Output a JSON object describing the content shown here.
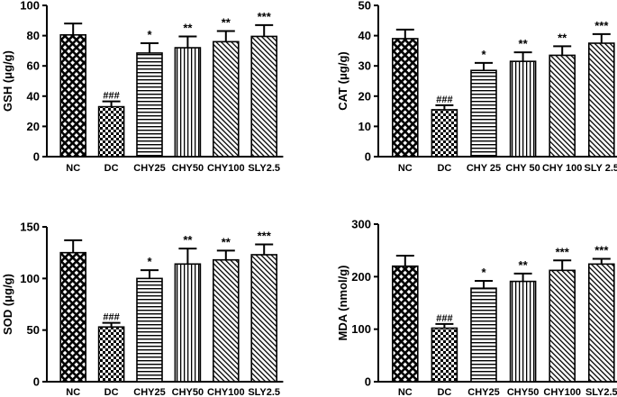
{
  "chart_data": [
    {
      "type": "bar",
      "ylabel": "GSH (μg/g)",
      "ylim": [
        0,
        100
      ],
      "yticks": [
        0,
        20,
        40,
        60,
        80,
        100
      ],
      "categories": [
        "NC",
        "DC",
        "CHY25",
        "CHY50",
        "CHY100",
        "SLY2.5"
      ],
      "values": [
        80.5,
        33,
        68.5,
        72,
        76,
        79.5
      ],
      "errors": [
        7.5,
        3.5,
        6.5,
        7.5,
        7,
        7.5
      ],
      "annotations": [
        "",
        "###",
        "*",
        "**",
        "**",
        "***"
      ],
      "patterns": [
        "crosshatch",
        "checker",
        "horizontal",
        "vertical",
        "diagonal",
        "diagonal"
      ]
    },
    {
      "type": "bar",
      "ylabel": "CAT (μg/g)",
      "ylim": [
        0,
        50
      ],
      "yticks": [
        0,
        10,
        20,
        30,
        40,
        50
      ],
      "categories": [
        "NC",
        "DC",
        "CHY 25",
        "CHY 50",
        "CHY 100",
        "SLY 2.5"
      ],
      "values": [
        39,
        15.5,
        28.5,
        31.5,
        33.5,
        37.5
      ],
      "errors": [
        3,
        1.5,
        2.5,
        3,
        3,
        3
      ],
      "annotations": [
        "",
        "###",
        "*",
        "**",
        "**",
        "***"
      ],
      "patterns": [
        "crosshatch",
        "checker",
        "horizontal",
        "vertical",
        "diagonal",
        "diagonal"
      ]
    },
    {
      "type": "bar",
      "ylabel": "SOD (μg/g)",
      "ylim": [
        0,
        150
      ],
      "yticks": [
        0,
        50,
        100,
        150
      ],
      "categories": [
        "NC",
        "DC",
        "CHY25",
        "CHY50",
        "CHY100",
        "SLY2.5"
      ],
      "values": [
        125,
        53,
        100,
        114,
        118,
        123
      ],
      "errors": [
        12,
        4,
        8,
        15,
        9,
        10
      ],
      "annotations": [
        "",
        "###",
        "*",
        "**",
        "**",
        "***"
      ],
      "patterns": [
        "crosshatch",
        "checker",
        "horizontal",
        "vertical",
        "diagonal",
        "diagonal"
      ]
    },
    {
      "type": "bar",
      "ylabel": "MDA (nmol/g)",
      "ylim": [
        0,
        300
      ],
      "yticks": [
        0,
        100,
        200,
        300
      ],
      "categories": [
        "NC",
        "DC",
        "CHY25",
        "CHY50",
        "CHY100",
        "SLY2.5"
      ],
      "values": [
        220,
        102,
        178,
        191,
        212,
        224
      ],
      "errors": [
        20,
        8,
        14,
        15,
        19,
        10
      ],
      "annotations": [
        "",
        "###",
        "*",
        "**",
        "***",
        "***"
      ],
      "patterns": [
        "crosshatch",
        "checker",
        "horizontal",
        "vertical",
        "diagonal",
        "diagonal"
      ]
    }
  ]
}
